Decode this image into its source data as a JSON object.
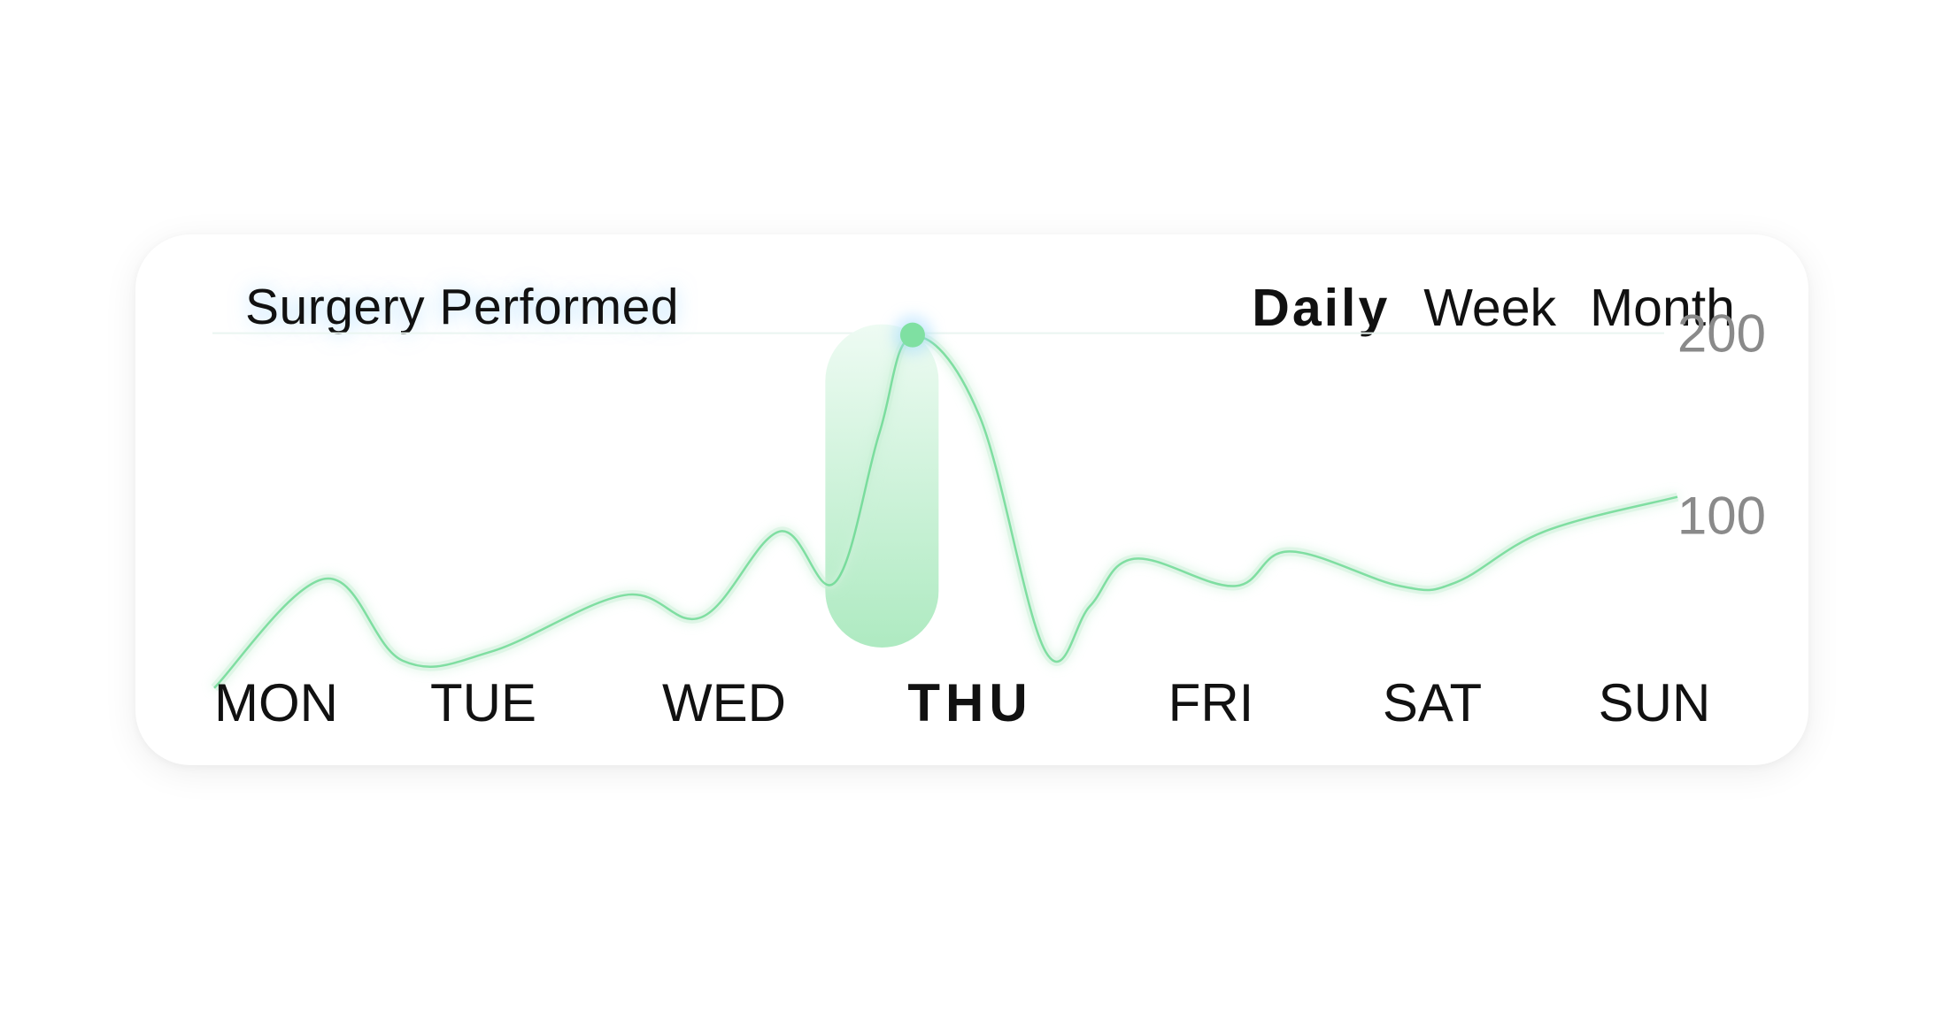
{
  "title": "Surgery Performed",
  "tabs": [
    {
      "label": "Daily",
      "active": true
    },
    {
      "label": "Week",
      "active": false
    },
    {
      "label": "Month",
      "active": false
    }
  ],
  "colors": {
    "accent": "#5fd68a",
    "highlight_top": "#e6f8ee",
    "highlight_bottom": "#aeeac1",
    "tick": "#8a8a8a"
  },
  "chart_data": {
    "type": "line",
    "title": "Surgery Performed",
    "categories": [
      "MON",
      "TUE",
      "WED",
      "THU",
      "FRI",
      "SAT",
      "SUN"
    ],
    "highlighted_category": "THU",
    "yticks": [
      100,
      200
    ],
    "ylim": [
      0,
      210
    ],
    "x_end": 6.6,
    "line": [
      [
        0,
        5
      ],
      [
        0.5,
        65
      ],
      [
        0.85,
        20
      ],
      [
        1.25,
        25
      ],
      [
        1.85,
        56
      ],
      [
        2.2,
        44
      ],
      [
        2.55,
        91
      ],
      [
        2.8,
        63
      ],
      [
        3.0,
        145
      ],
      [
        3.15,
        198
      ],
      [
        3.45,
        155
      ],
      [
        3.75,
        25
      ],
      [
        3.95,
        50
      ],
      [
        4.15,
        76
      ],
      [
        4.6,
        61
      ],
      [
        4.85,
        80
      ],
      [
        5.35,
        61
      ],
      [
        5.6,
        63
      ],
      [
        6.0,
        91
      ],
      [
        6.6,
        110
      ]
    ],
    "grid": "horizontal at 200",
    "legend": "none"
  }
}
